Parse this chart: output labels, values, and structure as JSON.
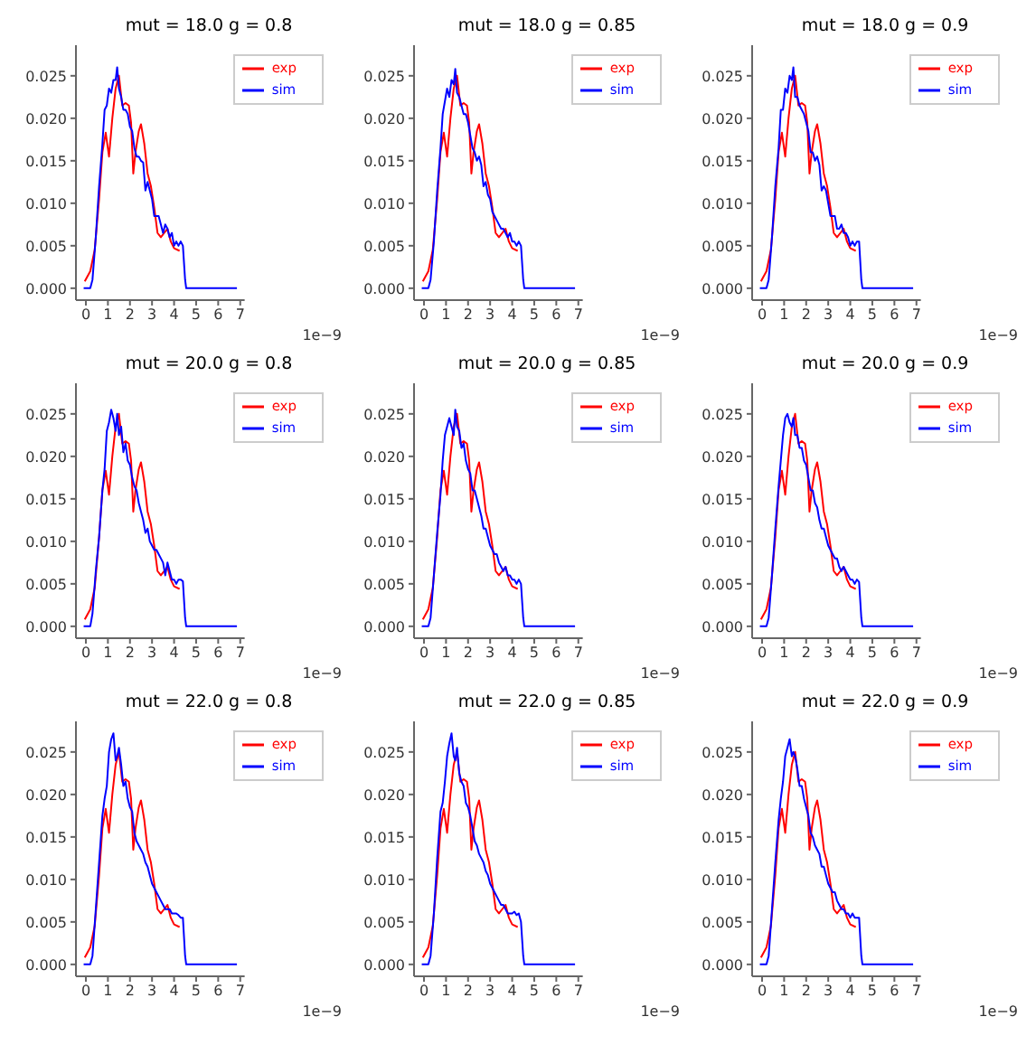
{
  "chart_data": [
    {
      "type": "line",
      "title": "mut = 18.0 g = 0.8",
      "xlim": [
        -0.45,
        7.2
      ],
      "ylim": [
        -0.0014,
        0.0286
      ],
      "xticks": [
        0,
        1,
        2,
        3,
        4,
        5,
        6,
        7
      ],
      "yticks": [
        {
          "value": 0,
          "label": "0.000"
        },
        {
          "value": 0.005,
          "label": "0.005"
        },
        {
          "value": 0.01,
          "label": "0.010"
        },
        {
          "value": 0.015,
          "label": "0.015"
        },
        {
          "value": 0.02,
          "label": "0.020"
        },
        {
          "value": 0.025,
          "label": "0.025"
        }
      ],
      "annotations": [
        "1e−9"
      ],
      "legend": "top right",
      "grid": false,
      "marker": "none",
      "line_style": "solid",
      "series": [
        {
          "name": "exp",
          "color": "#ff0000",
          "x": [
            -0.05,
            0.2,
            0.4,
            0.6,
            0.75,
            0.9,
            1.05,
            1.2,
            1.35,
            1.5,
            1.65,
            1.8,
            1.95,
            2.05,
            2.15,
            2.25,
            2.4,
            2.5,
            2.65,
            2.8,
            2.95,
            3.1,
            3.25,
            3.4,
            3.55,
            3.7,
            3.85,
            4.0,
            4.25
          ],
          "values": [
            0.0008,
            0.002,
            0.0045,
            0.0105,
            0.016,
            0.0183,
            0.0155,
            0.02,
            0.0235,
            0.025,
            0.0215,
            0.0218,
            0.0215,
            0.0195,
            0.0135,
            0.016,
            0.0185,
            0.0193,
            0.017,
            0.0135,
            0.012,
            0.0095,
            0.0065,
            0.006,
            0.0065,
            0.007,
            0.0055,
            0.0047,
            0.0044
          ]
        },
        {
          "name": "sim",
          "color": "#0000ff",
          "x": [
            -0.1,
            0.2,
            0.3,
            0.45,
            0.6,
            0.75,
            0.85,
            0.95,
            1.05,
            1.15,
            1.25,
            1.35,
            1.42,
            1.5,
            1.6,
            1.7,
            1.8,
            1.9,
            2.0,
            2.1,
            2.2,
            2.3,
            2.4,
            2.5,
            2.6,
            2.7,
            2.8,
            2.9,
            3.0,
            3.1,
            3.2,
            3.3,
            3.4,
            3.5,
            3.6,
            3.7,
            3.8,
            3.9,
            4.0,
            4.1,
            4.2,
            4.3,
            4.4,
            4.5,
            4.55,
            6.85
          ],
          "values": [
            0,
            0,
            0.001,
            0.006,
            0.012,
            0.017,
            0.021,
            0.0215,
            0.0235,
            0.023,
            0.0245,
            0.0245,
            0.026,
            0.0235,
            0.0225,
            0.021,
            0.021,
            0.0205,
            0.019,
            0.0185,
            0.0165,
            0.0155,
            0.0155,
            0.015,
            0.0148,
            0.0115,
            0.0125,
            0.0115,
            0.0105,
            0.0085,
            0.0085,
            0.0085,
            0.0075,
            0.0065,
            0.0075,
            0.007,
            0.006,
            0.0065,
            0.005,
            0.0055,
            0.005,
            0.0055,
            0.005,
            0.001,
            0,
            0
          ]
        }
      ]
    },
    {
      "type": "line",
      "title": "mut = 18.0 g = 0.85",
      "xlim": [
        -0.45,
        7.2
      ],
      "ylim": [
        -0.0014,
        0.0286
      ],
      "xticks": [
        0,
        1,
        2,
        3,
        4,
        5,
        6,
        7
      ],
      "yticks": [
        {
          "value": 0,
          "label": "0.000"
        },
        {
          "value": 0.005,
          "label": "0.005"
        },
        {
          "value": 0.01,
          "label": "0.010"
        },
        {
          "value": 0.015,
          "label": "0.015"
        },
        {
          "value": 0.02,
          "label": "0.020"
        },
        {
          "value": 0.025,
          "label": "0.025"
        }
      ],
      "annotations": [
        "1e−9"
      ],
      "legend": "top right",
      "grid": false,
      "marker": "none",
      "line_style": "solid",
      "series": [
        {
          "name": "exp",
          "color": "#ff0000",
          "x": [
            -0.05,
            0.2,
            0.4,
            0.6,
            0.75,
            0.9,
            1.05,
            1.2,
            1.35,
            1.5,
            1.65,
            1.8,
            1.95,
            2.05,
            2.15,
            2.25,
            2.4,
            2.5,
            2.65,
            2.8,
            2.95,
            3.1,
            3.25,
            3.4,
            3.55,
            3.7,
            3.85,
            4.0,
            4.25
          ],
          "values": [
            0.0008,
            0.002,
            0.0045,
            0.0105,
            0.016,
            0.0183,
            0.0155,
            0.02,
            0.0235,
            0.025,
            0.0215,
            0.0218,
            0.0215,
            0.0195,
            0.0135,
            0.016,
            0.0185,
            0.0193,
            0.017,
            0.0135,
            0.012,
            0.0095,
            0.0065,
            0.006,
            0.0065,
            0.007,
            0.0055,
            0.0047,
            0.0044
          ]
        },
        {
          "name": "sim",
          "color": "#0000ff",
          "x": [
            -0.1,
            0.2,
            0.3,
            0.45,
            0.6,
            0.75,
            0.85,
            0.95,
            1.05,
            1.15,
            1.25,
            1.35,
            1.42,
            1.5,
            1.6,
            1.7,
            1.8,
            1.9,
            2.0,
            2.1,
            2.2,
            2.3,
            2.4,
            2.5,
            2.6,
            2.7,
            2.8,
            2.9,
            3.0,
            3.1,
            3.2,
            3.3,
            3.4,
            3.5,
            3.6,
            3.7,
            3.8,
            3.9,
            4.0,
            4.1,
            4.2,
            4.3,
            4.4,
            4.5,
            4.55,
            6.85
          ],
          "values": [
            0,
            0,
            0.001,
            0.0055,
            0.0115,
            0.0165,
            0.0205,
            0.022,
            0.0235,
            0.0225,
            0.0245,
            0.024,
            0.0258,
            0.023,
            0.0225,
            0.0215,
            0.0205,
            0.0205,
            0.0195,
            0.018,
            0.0165,
            0.016,
            0.015,
            0.0155,
            0.0145,
            0.012,
            0.0125,
            0.011,
            0.0105,
            0.009,
            0.0085,
            0.008,
            0.0075,
            0.007,
            0.007,
            0.0065,
            0.006,
            0.0065,
            0.0055,
            0.0055,
            0.005,
            0.0055,
            0.005,
            0.001,
            0,
            0
          ]
        }
      ]
    },
    {
      "type": "line",
      "title": "mut = 18.0 g = 0.9",
      "xlim": [
        -0.45,
        7.2
      ],
      "ylim": [
        -0.0014,
        0.0286
      ],
      "xticks": [
        0,
        1,
        2,
        3,
        4,
        5,
        6,
        7
      ],
      "yticks": [
        {
          "value": 0,
          "label": "0.000"
        },
        {
          "value": 0.005,
          "label": "0.005"
        },
        {
          "value": 0.01,
          "label": "0.010"
        },
        {
          "value": 0.015,
          "label": "0.015"
        },
        {
          "value": 0.02,
          "label": "0.020"
        },
        {
          "value": 0.025,
          "label": "0.025"
        }
      ],
      "annotations": [
        "1e−9"
      ],
      "legend": "top right",
      "grid": false,
      "marker": "none",
      "line_style": "solid",
      "series": [
        {
          "name": "exp",
          "color": "#ff0000",
          "x": [
            -0.05,
            0.2,
            0.4,
            0.6,
            0.75,
            0.9,
            1.05,
            1.2,
            1.35,
            1.5,
            1.65,
            1.8,
            1.95,
            2.05,
            2.15,
            2.25,
            2.4,
            2.5,
            2.65,
            2.8,
            2.95,
            3.1,
            3.25,
            3.4,
            3.55,
            3.7,
            3.85,
            4.0,
            4.25
          ],
          "values": [
            0.0008,
            0.002,
            0.0045,
            0.0105,
            0.016,
            0.0183,
            0.0155,
            0.02,
            0.0235,
            0.025,
            0.0215,
            0.0218,
            0.0215,
            0.0195,
            0.0135,
            0.016,
            0.0185,
            0.0193,
            0.017,
            0.0135,
            0.012,
            0.0095,
            0.0065,
            0.006,
            0.0065,
            0.007,
            0.0055,
            0.0047,
            0.0044
          ]
        },
        {
          "name": "sim",
          "color": "#0000ff",
          "x": [
            -0.1,
            0.2,
            0.3,
            0.45,
            0.6,
            0.75,
            0.85,
            0.95,
            1.05,
            1.15,
            1.25,
            1.35,
            1.42,
            1.5,
            1.6,
            1.7,
            1.8,
            1.9,
            2.0,
            2.1,
            2.2,
            2.3,
            2.4,
            2.5,
            2.6,
            2.7,
            2.8,
            2.9,
            3.0,
            3.1,
            3.2,
            3.3,
            3.4,
            3.5,
            3.6,
            3.7,
            3.8,
            3.9,
            4.0,
            4.1,
            4.2,
            4.3,
            4.4,
            4.5,
            4.55,
            6.85
          ],
          "values": [
            0,
            0,
            0.001,
            0.006,
            0.012,
            0.0165,
            0.021,
            0.021,
            0.0235,
            0.023,
            0.025,
            0.0245,
            0.026,
            0.0225,
            0.0225,
            0.0215,
            0.021,
            0.0205,
            0.0195,
            0.0185,
            0.016,
            0.016,
            0.015,
            0.0155,
            0.0145,
            0.0115,
            0.012,
            0.0115,
            0.01,
            0.0085,
            0.0085,
            0.0085,
            0.007,
            0.007,
            0.0075,
            0.0065,
            0.0065,
            0.006,
            0.005,
            0.0055,
            0.005,
            0.0055,
            0.0055,
            0.001,
            0,
            0
          ]
        }
      ]
    },
    {
      "type": "line",
      "title": "mut = 20.0 g = 0.8",
      "xlim": [
        -0.45,
        7.2
      ],
      "ylim": [
        -0.0014,
        0.0286
      ],
      "xticks": [
        0,
        1,
        2,
        3,
        4,
        5,
        6,
        7
      ],
      "yticks": [
        {
          "value": 0,
          "label": "0.000"
        },
        {
          "value": 0.005,
          "label": "0.005"
        },
        {
          "value": 0.01,
          "label": "0.010"
        },
        {
          "value": 0.015,
          "label": "0.015"
        },
        {
          "value": 0.02,
          "label": "0.020"
        },
        {
          "value": 0.025,
          "label": "0.025"
        }
      ],
      "annotations": [
        "1e−9"
      ],
      "legend": "top right",
      "grid": false,
      "marker": "none",
      "line_style": "solid",
      "series": [
        {
          "name": "exp",
          "color": "#ff0000",
          "x": [
            -0.05,
            0.2,
            0.4,
            0.6,
            0.75,
            0.9,
            1.05,
            1.2,
            1.35,
            1.5,
            1.65,
            1.8,
            1.95,
            2.05,
            2.15,
            2.25,
            2.4,
            2.5,
            2.65,
            2.8,
            2.95,
            3.1,
            3.25,
            3.4,
            3.55,
            3.7,
            3.85,
            4.0,
            4.25
          ],
          "values": [
            0.0008,
            0.002,
            0.0045,
            0.0105,
            0.016,
            0.0183,
            0.0155,
            0.02,
            0.0235,
            0.025,
            0.0215,
            0.0218,
            0.0215,
            0.0195,
            0.0135,
            0.016,
            0.0185,
            0.0193,
            0.017,
            0.0135,
            0.012,
            0.0095,
            0.0065,
            0.006,
            0.0065,
            0.007,
            0.0055,
            0.0047,
            0.0044
          ]
        },
        {
          "name": "sim",
          "color": "#0000ff",
          "x": [
            -0.1,
            0.2,
            0.3,
            0.45,
            0.6,
            0.75,
            0.85,
            0.95,
            1.05,
            1.15,
            1.25,
            1.35,
            1.42,
            1.5,
            1.6,
            1.7,
            1.8,
            1.9,
            2.0,
            2.1,
            2.2,
            2.3,
            2.4,
            2.5,
            2.6,
            2.7,
            2.8,
            2.9,
            3.0,
            3.1,
            3.2,
            3.3,
            3.4,
            3.5,
            3.6,
            3.7,
            3.8,
            3.9,
            4.0,
            4.1,
            4.2,
            4.3,
            4.4,
            4.5,
            4.55,
            6.85
          ],
          "values": [
            0,
            0,
            0.0015,
            0.0065,
            0.0105,
            0.016,
            0.0185,
            0.023,
            0.024,
            0.0255,
            0.0245,
            0.023,
            0.025,
            0.0225,
            0.0235,
            0.0205,
            0.0215,
            0.0195,
            0.019,
            0.0175,
            0.0165,
            0.016,
            0.0145,
            0.0135,
            0.0125,
            0.011,
            0.0115,
            0.01,
            0.0095,
            0.009,
            0.009,
            0.0085,
            0.008,
            0.0075,
            0.006,
            0.0075,
            0.0065,
            0.0055,
            0.0055,
            0.005,
            0.0055,
            0.0055,
            0.0053,
            0.001,
            0,
            0
          ]
        }
      ]
    },
    {
      "type": "line",
      "title": "mut = 20.0 g = 0.85",
      "xlim": [
        -0.45,
        7.2
      ],
      "ylim": [
        -0.0014,
        0.0286
      ],
      "xticks": [
        0,
        1,
        2,
        3,
        4,
        5,
        6,
        7
      ],
      "yticks": [
        {
          "value": 0,
          "label": "0.000"
        },
        {
          "value": 0.005,
          "label": "0.005"
        },
        {
          "value": 0.01,
          "label": "0.010"
        },
        {
          "value": 0.015,
          "label": "0.015"
        },
        {
          "value": 0.02,
          "label": "0.020"
        },
        {
          "value": 0.025,
          "label": "0.025"
        }
      ],
      "annotations": [
        "1e−9"
      ],
      "legend": "top right",
      "grid": false,
      "marker": "none",
      "line_style": "solid",
      "series": [
        {
          "name": "exp",
          "color": "#ff0000",
          "x": [
            -0.05,
            0.2,
            0.4,
            0.6,
            0.75,
            0.9,
            1.05,
            1.2,
            1.35,
            1.5,
            1.65,
            1.8,
            1.95,
            2.05,
            2.15,
            2.25,
            2.4,
            2.5,
            2.65,
            2.8,
            2.95,
            3.1,
            3.25,
            3.4,
            3.55,
            3.7,
            3.85,
            4.0,
            4.25
          ],
          "values": [
            0.0008,
            0.002,
            0.0045,
            0.0105,
            0.016,
            0.0183,
            0.0155,
            0.02,
            0.0235,
            0.025,
            0.0215,
            0.0218,
            0.0215,
            0.0195,
            0.0135,
            0.016,
            0.0185,
            0.0193,
            0.017,
            0.0135,
            0.012,
            0.0095,
            0.0065,
            0.006,
            0.0065,
            0.007,
            0.0055,
            0.0047,
            0.0044
          ]
        },
        {
          "name": "sim",
          "color": "#0000ff",
          "x": [
            -0.1,
            0.2,
            0.3,
            0.45,
            0.6,
            0.75,
            0.85,
            0.95,
            1.05,
            1.15,
            1.25,
            1.35,
            1.42,
            1.5,
            1.6,
            1.7,
            1.8,
            1.9,
            2.0,
            2.1,
            2.2,
            2.3,
            2.4,
            2.5,
            2.6,
            2.7,
            2.8,
            2.9,
            3.0,
            3.1,
            3.2,
            3.3,
            3.4,
            3.5,
            3.6,
            3.7,
            3.8,
            3.9,
            4.0,
            4.1,
            4.2,
            4.3,
            4.4,
            4.5,
            4.55,
            6.85
          ],
          "values": [
            0,
            0,
            0.001,
            0.006,
            0.011,
            0.0155,
            0.0195,
            0.0225,
            0.0235,
            0.0245,
            0.0235,
            0.0225,
            0.0255,
            0.0235,
            0.023,
            0.021,
            0.0215,
            0.0195,
            0.0185,
            0.018,
            0.016,
            0.016,
            0.015,
            0.014,
            0.013,
            0.0115,
            0.0115,
            0.0105,
            0.0095,
            0.009,
            0.0085,
            0.0085,
            0.0075,
            0.007,
            0.0065,
            0.007,
            0.006,
            0.006,
            0.0055,
            0.0055,
            0.005,
            0.0055,
            0.005,
            0.001,
            0,
            0
          ]
        }
      ]
    },
    {
      "type": "line",
      "title": "mut = 20.0 g = 0.9",
      "xlim": [
        -0.45,
        7.2
      ],
      "ylim": [
        -0.0014,
        0.0286
      ],
      "xticks": [
        0,
        1,
        2,
        3,
        4,
        5,
        6,
        7
      ],
      "yticks": [
        {
          "value": 0,
          "label": "0.000"
        },
        {
          "value": 0.005,
          "label": "0.005"
        },
        {
          "value": 0.01,
          "label": "0.010"
        },
        {
          "value": 0.015,
          "label": "0.015"
        },
        {
          "value": 0.02,
          "label": "0.020"
        },
        {
          "value": 0.025,
          "label": "0.025"
        }
      ],
      "annotations": [
        "1e−9"
      ],
      "legend": "top right",
      "grid": false,
      "marker": "none",
      "line_style": "solid",
      "series": [
        {
          "name": "exp",
          "color": "#ff0000",
          "x": [
            -0.05,
            0.2,
            0.4,
            0.6,
            0.75,
            0.9,
            1.05,
            1.2,
            1.35,
            1.5,
            1.65,
            1.8,
            1.95,
            2.05,
            2.15,
            2.25,
            2.4,
            2.5,
            2.65,
            2.8,
            2.95,
            3.1,
            3.25,
            3.4,
            3.55,
            3.7,
            3.85,
            4.0,
            4.25
          ],
          "values": [
            0.0008,
            0.002,
            0.0045,
            0.0105,
            0.016,
            0.0183,
            0.0155,
            0.02,
            0.0235,
            0.025,
            0.0215,
            0.0218,
            0.0215,
            0.0195,
            0.0135,
            0.016,
            0.0185,
            0.0193,
            0.017,
            0.0135,
            0.012,
            0.0095,
            0.0065,
            0.006,
            0.0065,
            0.007,
            0.0055,
            0.0047,
            0.0044
          ]
        },
        {
          "name": "sim",
          "color": "#0000ff",
          "x": [
            -0.1,
            0.2,
            0.3,
            0.45,
            0.6,
            0.75,
            0.85,
            0.95,
            1.05,
            1.15,
            1.25,
            1.35,
            1.42,
            1.5,
            1.6,
            1.7,
            1.8,
            1.9,
            2.0,
            2.1,
            2.2,
            2.3,
            2.4,
            2.5,
            2.6,
            2.7,
            2.8,
            2.9,
            3.0,
            3.1,
            3.2,
            3.3,
            3.4,
            3.5,
            3.6,
            3.7,
            3.8,
            3.9,
            4.0,
            4.1,
            4.2,
            4.3,
            4.4,
            4.5,
            4.55,
            6.85
          ],
          "values": [
            0,
            0,
            0.001,
            0.006,
            0.0115,
            0.0165,
            0.0195,
            0.0225,
            0.0245,
            0.025,
            0.024,
            0.0235,
            0.0245,
            0.0225,
            0.0225,
            0.021,
            0.021,
            0.0195,
            0.019,
            0.0175,
            0.016,
            0.016,
            0.0145,
            0.014,
            0.0125,
            0.0115,
            0.0115,
            0.0105,
            0.0095,
            0.009,
            0.0085,
            0.008,
            0.008,
            0.007,
            0.0065,
            0.007,
            0.0065,
            0.006,
            0.0055,
            0.0055,
            0.005,
            0.0055,
            0.0052,
            0.001,
            0,
            0
          ]
        }
      ]
    },
    {
      "type": "line",
      "title": "mut = 22.0 g = 0.8",
      "xlim": [
        -0.45,
        7.2
      ],
      "ylim": [
        -0.0014,
        0.0286
      ],
      "xticks": [
        0,
        1,
        2,
        3,
        4,
        5,
        6,
        7
      ],
      "yticks": [
        {
          "value": 0,
          "label": "0.000"
        },
        {
          "value": 0.005,
          "label": "0.005"
        },
        {
          "value": 0.01,
          "label": "0.010"
        },
        {
          "value": 0.015,
          "label": "0.015"
        },
        {
          "value": 0.02,
          "label": "0.020"
        },
        {
          "value": 0.025,
          "label": "0.025"
        }
      ],
      "annotations": [
        "1e−9"
      ],
      "legend": "top right",
      "grid": false,
      "marker": "none",
      "line_style": "solid",
      "series": [
        {
          "name": "exp",
          "color": "#ff0000",
          "x": [
            -0.05,
            0.2,
            0.4,
            0.6,
            0.75,
            0.9,
            1.05,
            1.2,
            1.35,
            1.5,
            1.65,
            1.8,
            1.95,
            2.05,
            2.15,
            2.25,
            2.4,
            2.5,
            2.65,
            2.8,
            2.95,
            3.1,
            3.25,
            3.4,
            3.55,
            3.7,
            3.85,
            4.0,
            4.25
          ],
          "values": [
            0.0008,
            0.002,
            0.0045,
            0.0105,
            0.016,
            0.0183,
            0.0155,
            0.02,
            0.0235,
            0.025,
            0.0215,
            0.0218,
            0.0215,
            0.0195,
            0.0135,
            0.016,
            0.0185,
            0.0193,
            0.017,
            0.0135,
            0.012,
            0.0095,
            0.0065,
            0.006,
            0.0065,
            0.007,
            0.0055,
            0.0047,
            0.0044
          ]
        },
        {
          "name": "sim",
          "color": "#0000ff",
          "x": [
            -0.1,
            0.2,
            0.3,
            0.45,
            0.6,
            0.75,
            0.85,
            0.95,
            1.05,
            1.15,
            1.25,
            1.35,
            1.42,
            1.5,
            1.6,
            1.7,
            1.8,
            1.9,
            2.0,
            2.1,
            2.2,
            2.3,
            2.4,
            2.5,
            2.6,
            2.7,
            2.8,
            2.9,
            3.0,
            3.1,
            3.2,
            3.3,
            3.4,
            3.5,
            3.6,
            3.7,
            3.8,
            3.9,
            4.0,
            4.1,
            4.2,
            4.3,
            4.4,
            4.5,
            4.55,
            6.85
          ],
          "values": [
            0,
            0,
            0.001,
            0.0065,
            0.012,
            0.0175,
            0.0195,
            0.021,
            0.025,
            0.0265,
            0.0272,
            0.024,
            0.0245,
            0.0255,
            0.0235,
            0.021,
            0.0215,
            0.0195,
            0.0185,
            0.018,
            0.0155,
            0.0145,
            0.014,
            0.0135,
            0.013,
            0.012,
            0.0115,
            0.0105,
            0.0095,
            0.009,
            0.0085,
            0.008,
            0.0075,
            0.007,
            0.0065,
            0.0065,
            0.0065,
            0.006,
            0.006,
            0.006,
            0.0058,
            0.0055,
            0.0055,
            0.001,
            0,
            0
          ]
        }
      ]
    },
    {
      "type": "line",
      "title": "mut = 22.0 g = 0.85",
      "xlim": [
        -0.45,
        7.2
      ],
      "ylim": [
        -0.0014,
        0.0286
      ],
      "xticks": [
        0,
        1,
        2,
        3,
        4,
        5,
        6,
        7
      ],
      "yticks": [
        {
          "value": 0,
          "label": "0.000"
        },
        {
          "value": 0.005,
          "label": "0.005"
        },
        {
          "value": 0.01,
          "label": "0.010"
        },
        {
          "value": 0.015,
          "label": "0.015"
        },
        {
          "value": 0.02,
          "label": "0.020"
        },
        {
          "value": 0.025,
          "label": "0.025"
        }
      ],
      "annotations": [
        "1e−9"
      ],
      "legend": "top right",
      "grid": false,
      "marker": "none",
      "line_style": "solid",
      "series": [
        {
          "name": "exp",
          "color": "#ff0000",
          "x": [
            -0.05,
            0.2,
            0.4,
            0.6,
            0.75,
            0.9,
            1.05,
            1.2,
            1.35,
            1.5,
            1.65,
            1.8,
            1.95,
            2.05,
            2.15,
            2.25,
            2.4,
            2.5,
            2.65,
            2.8,
            2.95,
            3.1,
            3.25,
            3.4,
            3.55,
            3.7,
            3.85,
            4.0,
            4.25
          ],
          "values": [
            0.0008,
            0.002,
            0.0045,
            0.0105,
            0.016,
            0.0183,
            0.0155,
            0.02,
            0.0235,
            0.025,
            0.0215,
            0.0218,
            0.0215,
            0.0195,
            0.0135,
            0.016,
            0.0185,
            0.0193,
            0.017,
            0.0135,
            0.012,
            0.0095,
            0.0065,
            0.006,
            0.0065,
            0.007,
            0.0055,
            0.0047,
            0.0044
          ]
        },
        {
          "name": "sim",
          "color": "#0000ff",
          "x": [
            -0.1,
            0.2,
            0.3,
            0.45,
            0.6,
            0.75,
            0.85,
            0.95,
            1.05,
            1.15,
            1.25,
            1.35,
            1.42,
            1.5,
            1.6,
            1.7,
            1.8,
            1.9,
            2.0,
            2.1,
            2.2,
            2.3,
            2.4,
            2.5,
            2.6,
            2.7,
            2.8,
            2.9,
            3.0,
            3.1,
            3.2,
            3.3,
            3.4,
            3.5,
            3.6,
            3.7,
            3.8,
            3.9,
            4.0,
            4.1,
            4.2,
            4.3,
            4.4,
            4.5,
            4.55,
            6.85
          ],
          "values": [
            0,
            0,
            0.001,
            0.006,
            0.0125,
            0.018,
            0.019,
            0.0215,
            0.0245,
            0.026,
            0.0272,
            0.0245,
            0.024,
            0.0255,
            0.0225,
            0.0215,
            0.021,
            0.019,
            0.0185,
            0.0175,
            0.016,
            0.0145,
            0.014,
            0.013,
            0.0125,
            0.012,
            0.011,
            0.0105,
            0.0095,
            0.009,
            0.0085,
            0.008,
            0.0075,
            0.007,
            0.007,
            0.0065,
            0.006,
            0.006,
            0.006,
            0.0062,
            0.0058,
            0.006,
            0.005,
            0.001,
            0,
            0
          ]
        }
      ]
    },
    {
      "type": "line",
      "title": "mut = 22.0 g = 0.9",
      "xlim": [
        -0.45,
        7.2
      ],
      "ylim": [
        -0.0014,
        0.0286
      ],
      "xticks": [
        0,
        1,
        2,
        3,
        4,
        5,
        6,
        7
      ],
      "yticks": [
        {
          "value": 0,
          "label": "0.000"
        },
        {
          "value": 0.005,
          "label": "0.005"
        },
        {
          "value": 0.01,
          "label": "0.010"
        },
        {
          "value": 0.015,
          "label": "0.015"
        },
        {
          "value": 0.02,
          "label": "0.020"
        },
        {
          "value": 0.025,
          "label": "0.025"
        }
      ],
      "annotations": [
        "1e−9"
      ],
      "legend": "top right",
      "grid": false,
      "marker": "none",
      "line_style": "solid",
      "series": [
        {
          "name": "exp",
          "color": "#ff0000",
          "x": [
            -0.05,
            0.2,
            0.4,
            0.6,
            0.75,
            0.9,
            1.05,
            1.2,
            1.35,
            1.5,
            1.65,
            1.8,
            1.95,
            2.05,
            2.15,
            2.25,
            2.4,
            2.5,
            2.65,
            2.8,
            2.95,
            3.1,
            3.25,
            3.4,
            3.55,
            3.7,
            3.85,
            4.0,
            4.25
          ],
          "values": [
            0.0008,
            0.002,
            0.0045,
            0.0105,
            0.016,
            0.0183,
            0.0155,
            0.02,
            0.0235,
            0.025,
            0.0215,
            0.0218,
            0.0215,
            0.0195,
            0.0135,
            0.016,
            0.0185,
            0.0193,
            0.017,
            0.0135,
            0.012,
            0.0095,
            0.0065,
            0.006,
            0.0065,
            0.007,
            0.0055,
            0.0047,
            0.0044
          ]
        },
        {
          "name": "sim",
          "color": "#0000ff",
          "x": [
            -0.1,
            0.2,
            0.3,
            0.45,
            0.6,
            0.75,
            0.85,
            0.95,
            1.05,
            1.15,
            1.25,
            1.35,
            1.42,
            1.5,
            1.6,
            1.7,
            1.8,
            1.9,
            2.0,
            2.1,
            2.2,
            2.3,
            2.4,
            2.5,
            2.6,
            2.7,
            2.8,
            2.9,
            3.0,
            3.1,
            3.2,
            3.3,
            3.4,
            3.5,
            3.6,
            3.7,
            3.8,
            3.9,
            4.0,
            4.1,
            4.2,
            4.3,
            4.4,
            4.5,
            4.55,
            6.85
          ],
          "values": [
            0,
            0,
            0.001,
            0.0065,
            0.012,
            0.017,
            0.0195,
            0.0215,
            0.0245,
            0.0255,
            0.0265,
            0.0245,
            0.025,
            0.0245,
            0.023,
            0.021,
            0.021,
            0.0195,
            0.0185,
            0.0175,
            0.0155,
            0.015,
            0.014,
            0.0135,
            0.013,
            0.0115,
            0.0115,
            0.0105,
            0.0095,
            0.009,
            0.0085,
            0.0085,
            0.0075,
            0.007,
            0.0065,
            0.0065,
            0.006,
            0.006,
            0.0055,
            0.006,
            0.0055,
            0.0055,
            0.0055,
            0.001,
            0,
            0
          ]
        }
      ]
    }
  ]
}
